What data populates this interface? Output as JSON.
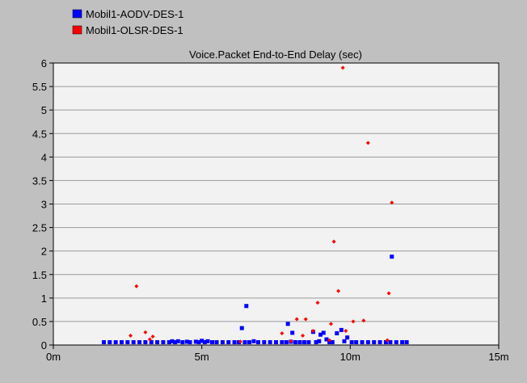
{
  "chart_data": {
    "type": "scatter",
    "title": "Voice.Packet End-to-End Delay (sec)",
    "xlabel": "",
    "ylabel": "",
    "xlim": [
      0,
      15
    ],
    "ylim": [
      0,
      6
    ],
    "x_unit": "minutes",
    "x_ticks": [
      {
        "value": 0,
        "label": "0m"
      },
      {
        "value": 5,
        "label": "5m"
      },
      {
        "value": 10,
        "label": "10m"
      },
      {
        "value": 15,
        "label": "15m"
      }
    ],
    "y_ticks": [
      {
        "value": 0,
        "label": "0"
      },
      {
        "value": 0.5,
        "label": "0.5"
      },
      {
        "value": 1,
        "label": "1"
      },
      {
        "value": 1.5,
        "label": "1.5"
      },
      {
        "value": 2,
        "label": "2"
      },
      {
        "value": 2.5,
        "label": "2.5"
      },
      {
        "value": 3,
        "label": "3"
      },
      {
        "value": 3.5,
        "label": "3.5"
      },
      {
        "value": 4,
        "label": "4"
      },
      {
        "value": 4.5,
        "label": "4.5"
      },
      {
        "value": 5,
        "label": "5"
      },
      {
        "value": 5.5,
        "label": "5.5"
      },
      {
        "value": 6,
        "label": "6"
      }
    ],
    "grid": "horizontal",
    "legend_position": "top-left, above plot",
    "series": [
      {
        "name": "Mobil1-AODV-DES-1",
        "color": "#0000ff",
        "marker": "square",
        "points": [
          [
            1.7,
            0.06
          ],
          [
            1.9,
            0.06
          ],
          [
            2.1,
            0.06
          ],
          [
            2.3,
            0.06
          ],
          [
            2.5,
            0.06
          ],
          [
            2.7,
            0.06
          ],
          [
            2.9,
            0.06
          ],
          [
            3.1,
            0.06
          ],
          [
            3.3,
            0.06
          ],
          [
            3.5,
            0.06
          ],
          [
            3.7,
            0.06
          ],
          [
            3.9,
            0.06
          ],
          [
            4.0,
            0.08
          ],
          [
            4.1,
            0.06
          ],
          [
            4.2,
            0.08
          ],
          [
            4.35,
            0.06
          ],
          [
            4.5,
            0.07
          ],
          [
            4.6,
            0.06
          ],
          [
            4.8,
            0.07
          ],
          [
            4.9,
            0.06
          ],
          [
            5.0,
            0.09
          ],
          [
            5.1,
            0.06
          ],
          [
            5.2,
            0.08
          ],
          [
            5.35,
            0.06
          ],
          [
            5.5,
            0.06
          ],
          [
            5.7,
            0.06
          ],
          [
            5.9,
            0.06
          ],
          [
            6.1,
            0.06
          ],
          [
            6.25,
            0.06
          ],
          [
            6.35,
            0.36
          ],
          [
            6.45,
            0.06
          ],
          [
            6.5,
            0.83
          ],
          [
            6.6,
            0.06
          ],
          [
            6.75,
            0.08
          ],
          [
            6.9,
            0.06
          ],
          [
            7.1,
            0.06
          ],
          [
            7.3,
            0.06
          ],
          [
            7.5,
            0.06
          ],
          [
            7.7,
            0.06
          ],
          [
            7.85,
            0.06
          ],
          [
            7.9,
            0.45
          ],
          [
            8.0,
            0.07
          ],
          [
            8.05,
            0.26
          ],
          [
            8.15,
            0.06
          ],
          [
            8.3,
            0.06
          ],
          [
            8.45,
            0.06
          ],
          [
            8.6,
            0.06
          ],
          [
            8.75,
            0.28
          ],
          [
            8.85,
            0.06
          ],
          [
            8.95,
            0.08
          ],
          [
            9.0,
            0.22
          ],
          [
            9.1,
            0.26
          ],
          [
            9.2,
            0.12
          ],
          [
            9.3,
            0.06
          ],
          [
            9.4,
            0.06
          ],
          [
            9.55,
            0.25
          ],
          [
            9.7,
            0.32
          ],
          [
            9.8,
            0.08
          ],
          [
            9.9,
            0.16
          ],
          [
            10.05,
            0.06
          ],
          [
            10.2,
            0.06
          ],
          [
            10.4,
            0.06
          ],
          [
            10.6,
            0.06
          ],
          [
            10.8,
            0.06
          ],
          [
            11.0,
            0.06
          ],
          [
            11.2,
            0.06
          ],
          [
            11.35,
            0.06
          ],
          [
            11.4,
            1.88
          ],
          [
            11.55,
            0.06
          ],
          [
            11.75,
            0.06
          ],
          [
            11.9,
            0.06
          ]
        ]
      },
      {
        "name": "Mobil1-OLSR-DES-1",
        "color": "#ff0000",
        "marker": "diamond",
        "points": [
          [
            2.6,
            0.2
          ],
          [
            2.8,
            1.25
          ],
          [
            3.1,
            0.27
          ],
          [
            3.25,
            0.12
          ],
          [
            3.35,
            0.18
          ],
          [
            6.3,
            0.07
          ],
          [
            7.7,
            0.25
          ],
          [
            8.0,
            0.08
          ],
          [
            8.2,
            0.55
          ],
          [
            8.4,
            0.2
          ],
          [
            8.5,
            0.55
          ],
          [
            8.75,
            0.3
          ],
          [
            8.9,
            0.9
          ],
          [
            9.3,
            0.1
          ],
          [
            9.35,
            0.45
          ],
          [
            9.45,
            2.2
          ],
          [
            9.6,
            1.15
          ],
          [
            9.75,
            5.9
          ],
          [
            9.85,
            0.3
          ],
          [
            10.1,
            0.5
          ],
          [
            10.45,
            0.52
          ],
          [
            10.6,
            4.3
          ],
          [
            11.25,
            0.1
          ],
          [
            11.3,
            1.1
          ],
          [
            11.4,
            3.03
          ]
        ]
      }
    ]
  }
}
